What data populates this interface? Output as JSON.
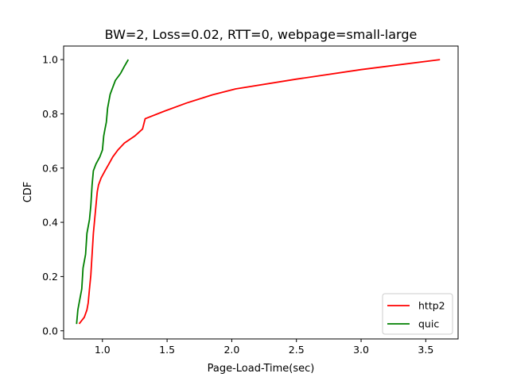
{
  "chart_data": {
    "type": "line",
    "title": "BW=2, Loss=0.02, RTT=0, webpage=small-large",
    "xlabel": "Page-Load-Time(sec)",
    "ylabel": "CDF",
    "xlim": [
      0.7,
      3.75
    ],
    "ylim": [
      -0.03,
      1.05
    ],
    "xticks": [
      "1.0",
      "1.5",
      "2.0",
      "2.5",
      "3.0",
      "3.5"
    ],
    "yticks": [
      "0.0",
      "0.2",
      "0.4",
      "0.6",
      "0.8",
      "1.0"
    ],
    "grid": false,
    "legend_position": "lower-right",
    "series": [
      {
        "name": "http2",
        "color": "#ff0000",
        "x": [
          0.82,
          0.86,
          0.88,
          0.89,
          0.9,
          0.91,
          0.92,
          0.93,
          0.94,
          0.96,
          0.97,
          0.99,
          1.02,
          1.05,
          1.08,
          1.12,
          1.17,
          1.25,
          1.31,
          1.33,
          1.48,
          1.65,
          1.85,
          2.03,
          2.5,
          3.0,
          3.61
        ],
        "y": [
          0.026,
          0.05,
          0.077,
          0.103,
          0.154,
          0.205,
          0.282,
          0.359,
          0.41,
          0.513,
          0.538,
          0.564,
          0.59,
          0.615,
          0.641,
          0.667,
          0.692,
          0.718,
          0.744,
          0.782,
          0.81,
          0.84,
          0.87,
          0.892,
          0.928,
          0.963,
          1.0
        ]
      },
      {
        "name": "quic",
        "color": "#008000",
        "x": [
          0.8,
          0.81,
          0.82,
          0.84,
          0.85,
          0.87,
          0.88,
          0.9,
          0.91,
          0.92,
          0.93,
          0.95,
          0.98,
          1.0,
          1.01,
          1.02,
          1.03,
          1.04,
          1.06,
          1.1,
          1.14,
          1.17,
          1.2
        ],
        "y": [
          0.025,
          0.077,
          0.103,
          0.154,
          0.231,
          0.282,
          0.359,
          0.41,
          0.462,
          0.538,
          0.59,
          0.615,
          0.641,
          0.667,
          0.718,
          0.744,
          0.769,
          0.821,
          0.872,
          0.923,
          0.949,
          0.975,
          1.0
        ]
      }
    ]
  }
}
